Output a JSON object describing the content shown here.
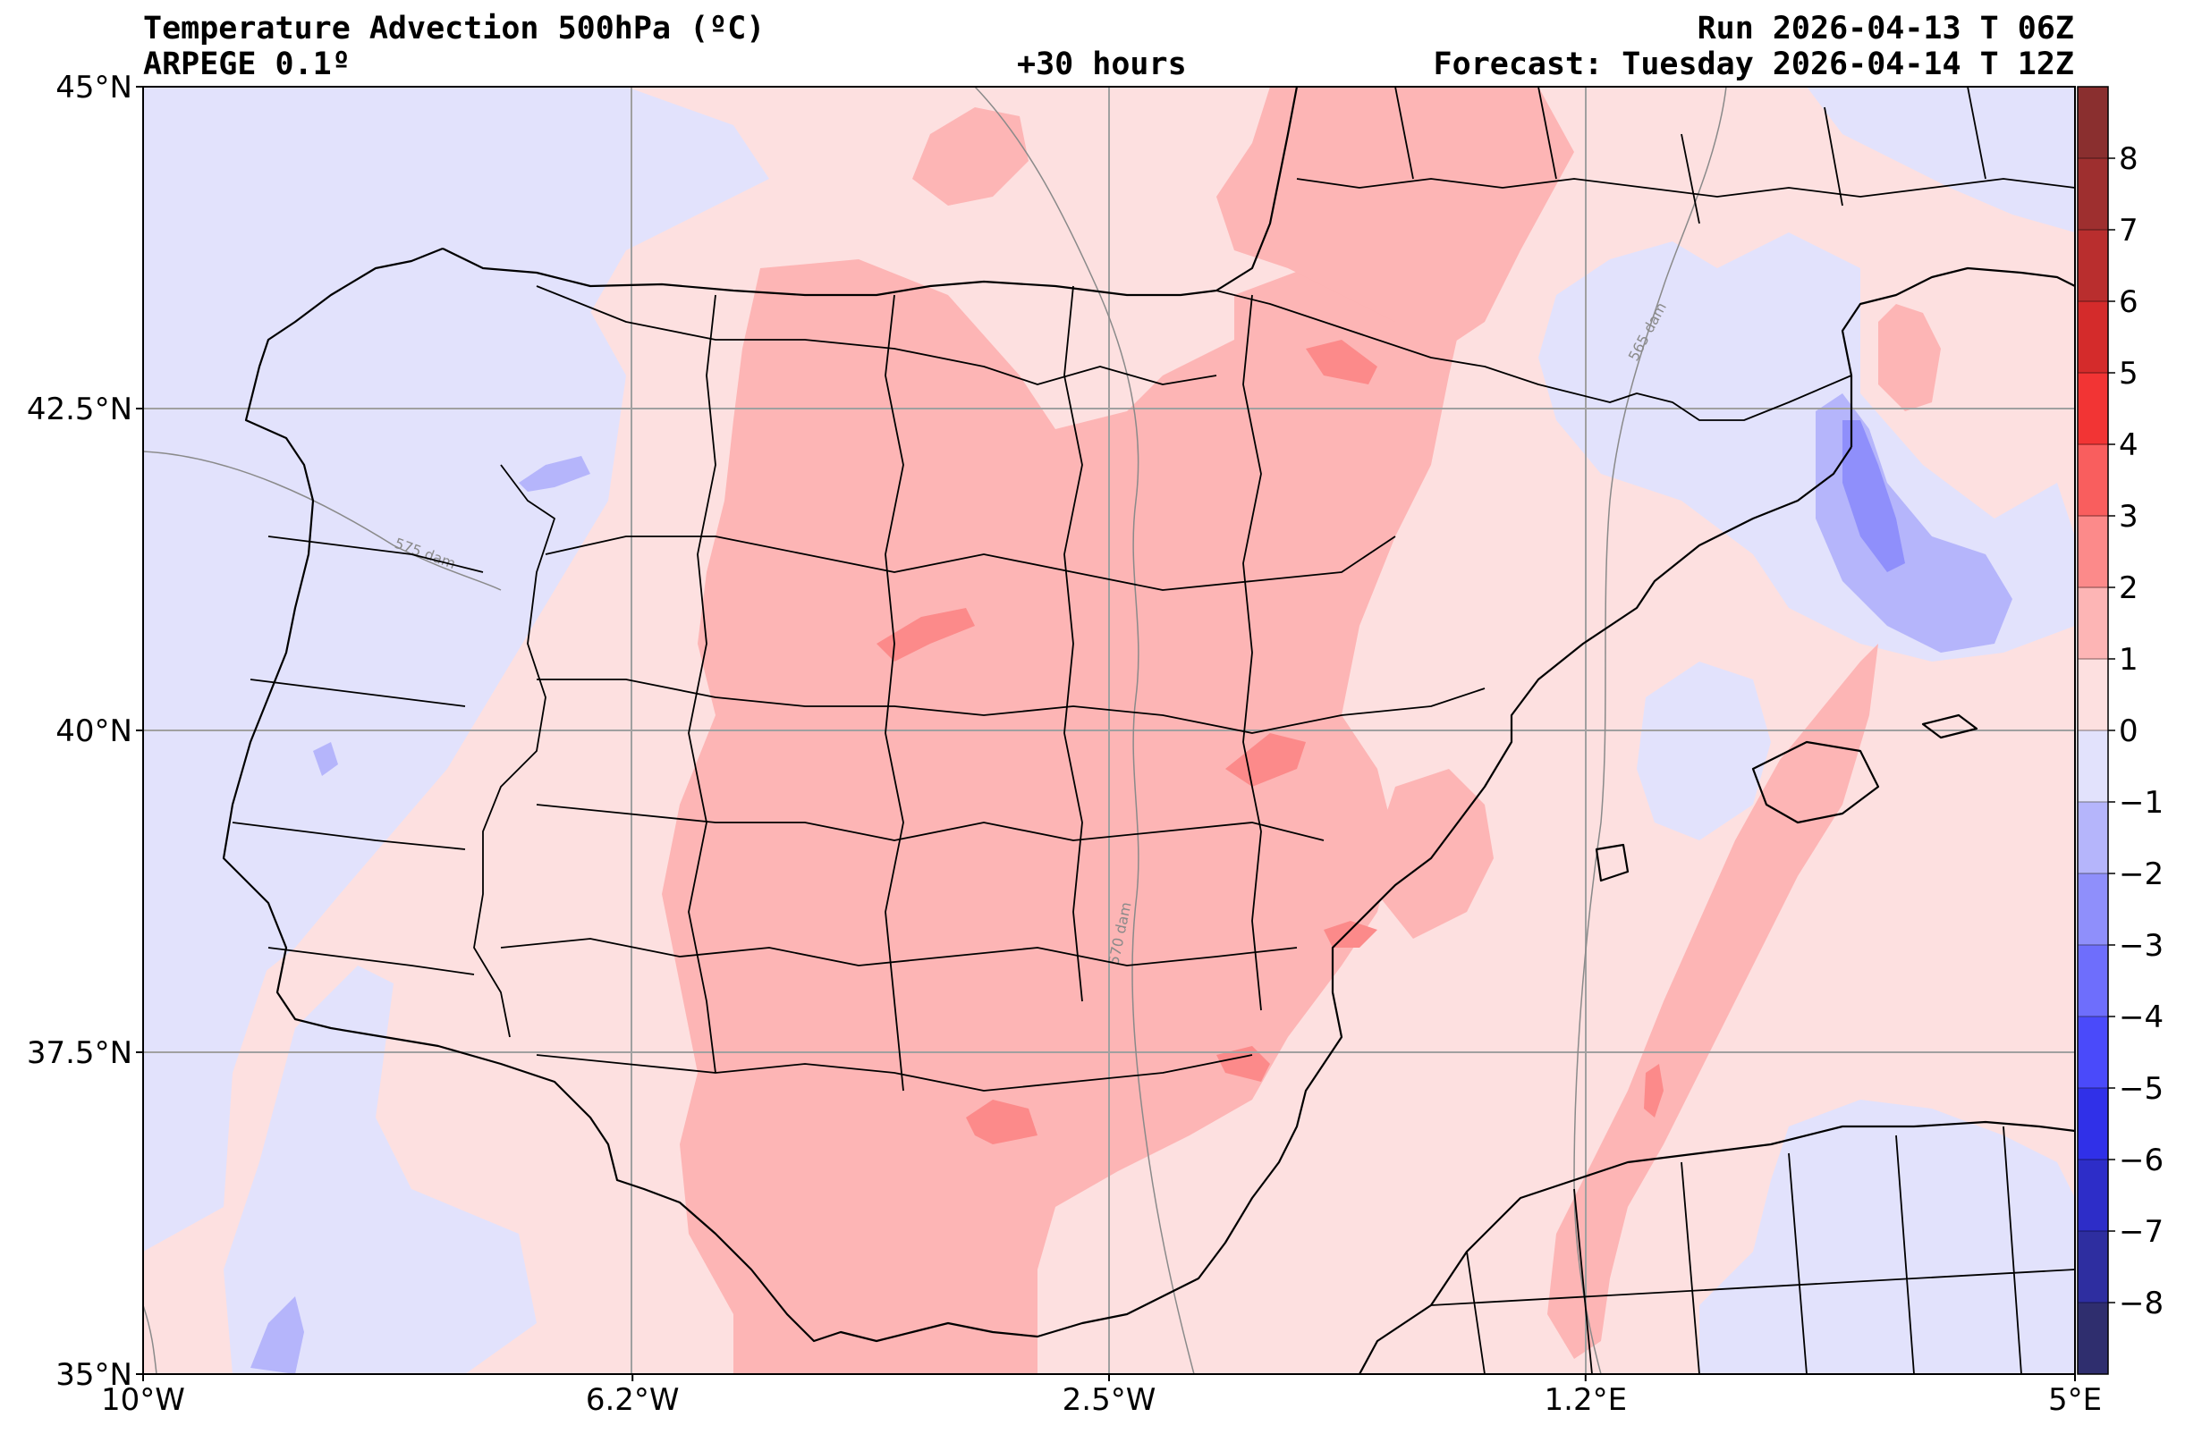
{
  "header": {
    "title": "Temperature Advection  500hPa (ºC)",
    "model": "ARPEGE 0.1º",
    "lead": "+30 hours",
    "run": "Run 2026-04-13 T 06Z",
    "forecast": "Forecast: Tuesday 2026-04-14 T 12Z"
  },
  "map": {
    "lon_range": [
      -10,
      5
    ],
    "lat_range": [
      35,
      45
    ],
    "lon_ticks": [
      {
        "value": -10,
        "label": "10°W"
      },
      {
        "value": -6.2,
        "label": "6.2°W"
      },
      {
        "value": -2.5,
        "label": "2.5°W"
      },
      {
        "value": 1.2,
        "label": "1.2°E"
      },
      {
        "value": 5,
        "label": "5°E"
      }
    ],
    "lat_ticks": [
      {
        "value": 45,
        "label": "45°N"
      },
      {
        "value": 42.5,
        "label": "42.5°N"
      },
      {
        "value": 40,
        "label": "40°N"
      },
      {
        "value": 37.5,
        "label": "37.5°N"
      },
      {
        "value": 35,
        "label": "35°N"
      }
    ],
    "isohypses": [
      "565 dam",
      "570 dam",
      "575 dam"
    ]
  },
  "colorbar": {
    "levels": [
      -9,
      -8,
      -7,
      -6,
      -5,
      -4,
      -3,
      -2,
      -1,
      0,
      1,
      2,
      3,
      4,
      5,
      6,
      7,
      8,
      9
    ],
    "labels": [
      "8",
      "7",
      "6",
      "5",
      "4",
      "3",
      "2",
      "1",
      "0",
      "−1",
      "−2",
      "−3",
      "−4",
      "−5",
      "−6",
      "−7",
      "−8"
    ],
    "colors": [
      "#2f2e6e",
      "#2e2ea0",
      "#2d2dc8",
      "#3030e8",
      "#4a4afa",
      "#6e6efc",
      "#8f8ffb",
      "#b5b5fb",
      "#e2e2fc",
      "#fde0e0",
      "#fdb5b5",
      "#fc8a8a",
      "#f95e5e",
      "#f23434",
      "#d42b2b",
      "#b92e2e",
      "#9e2f2f",
      "#8a2f2f"
    ]
  },
  "colors": {
    "background_field": "#fde0e0",
    "border": "#000000",
    "grid": "#a0a0a0",
    "isohypse": "#8a8a8a"
  }
}
